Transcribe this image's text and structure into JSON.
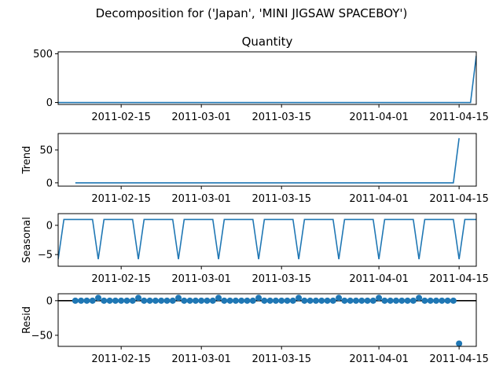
{
  "figure": {
    "suptitle": "Decomposition for ('Japan', 'MINI JIGSAW SPACEBOY')",
    "x_tick_labels": [
      "2011-02-15",
      "2011-03-01",
      "2011-03-15",
      "2011-04-01",
      "2011-04-15"
    ],
    "x_tick_dates": [
      "2011-02-15",
      "2011-03-01",
      "2011-03-15",
      "2011-04-01",
      "2011-04-15"
    ],
    "x_range": [
      "2011-02-04",
      "2011-04-18"
    ],
    "line_color": "#1f77b4",
    "zero_line_color": "#000000"
  },
  "chart_data": [
    {
      "type": "line",
      "title": "Quantity",
      "ylabel": "",
      "ylim": [
        -20,
        520
      ],
      "yticks": [
        0,
        500
      ],
      "y_tick_labels": [
        "0",
        "500"
      ],
      "x": [
        "2011-02-04",
        "2011-04-17",
        "2011-04-18"
      ],
      "values": [
        0,
        0,
        480
      ]
    },
    {
      "type": "line",
      "title": "",
      "ylabel": "Trend",
      "ylim": [
        -5,
        75
      ],
      "yticks": [
        0,
        50
      ],
      "y_tick_labels": [
        "0",
        "50"
      ],
      "x": [
        "2011-02-07",
        "2011-04-14",
        "2011-04-15"
      ],
      "values": [
        0,
        0,
        68
      ]
    },
    {
      "type": "line",
      "title": "",
      "ylabel": "Seasonal",
      "ylim": [
        -7,
        2
      ],
      "yticks": [
        -5,
        0
      ],
      "y_tick_labels": [
        "−5",
        "0"
      ],
      "pattern": {
        "period_days": 7,
        "first_dip_date": "2011-02-04",
        "dip_value": -5.8,
        "plateau_value": 1.0,
        "plateau_start_offset_days": 1,
        "plateau_end_offset_days": 6
      }
    },
    {
      "type": "scatter",
      "title": "",
      "ylabel": "Resid",
      "ylim": [
        -66,
        10
      ],
      "yticks": [
        -50,
        0
      ],
      "y_tick_labels": [
        "−50",
        "0"
      ],
      "zero_line": 0,
      "x_start": "2011-02-07",
      "x_end": "2011-04-14",
      "values_default": 0,
      "bumps": [
        {
          "date": "2011-02-11",
          "value": 4
        },
        {
          "date": "2011-02-18",
          "value": 4
        },
        {
          "date": "2011-02-25",
          "value": 4
        },
        {
          "date": "2011-03-04",
          "value": 4
        },
        {
          "date": "2011-03-11",
          "value": 4
        },
        {
          "date": "2011-03-18",
          "value": 4
        },
        {
          "date": "2011-03-25",
          "value": 4
        },
        {
          "date": "2011-04-01",
          "value": 4
        },
        {
          "date": "2011-04-08",
          "value": 4
        }
      ],
      "outlier": {
        "date": "2011-04-15",
        "value": -62
      }
    }
  ]
}
